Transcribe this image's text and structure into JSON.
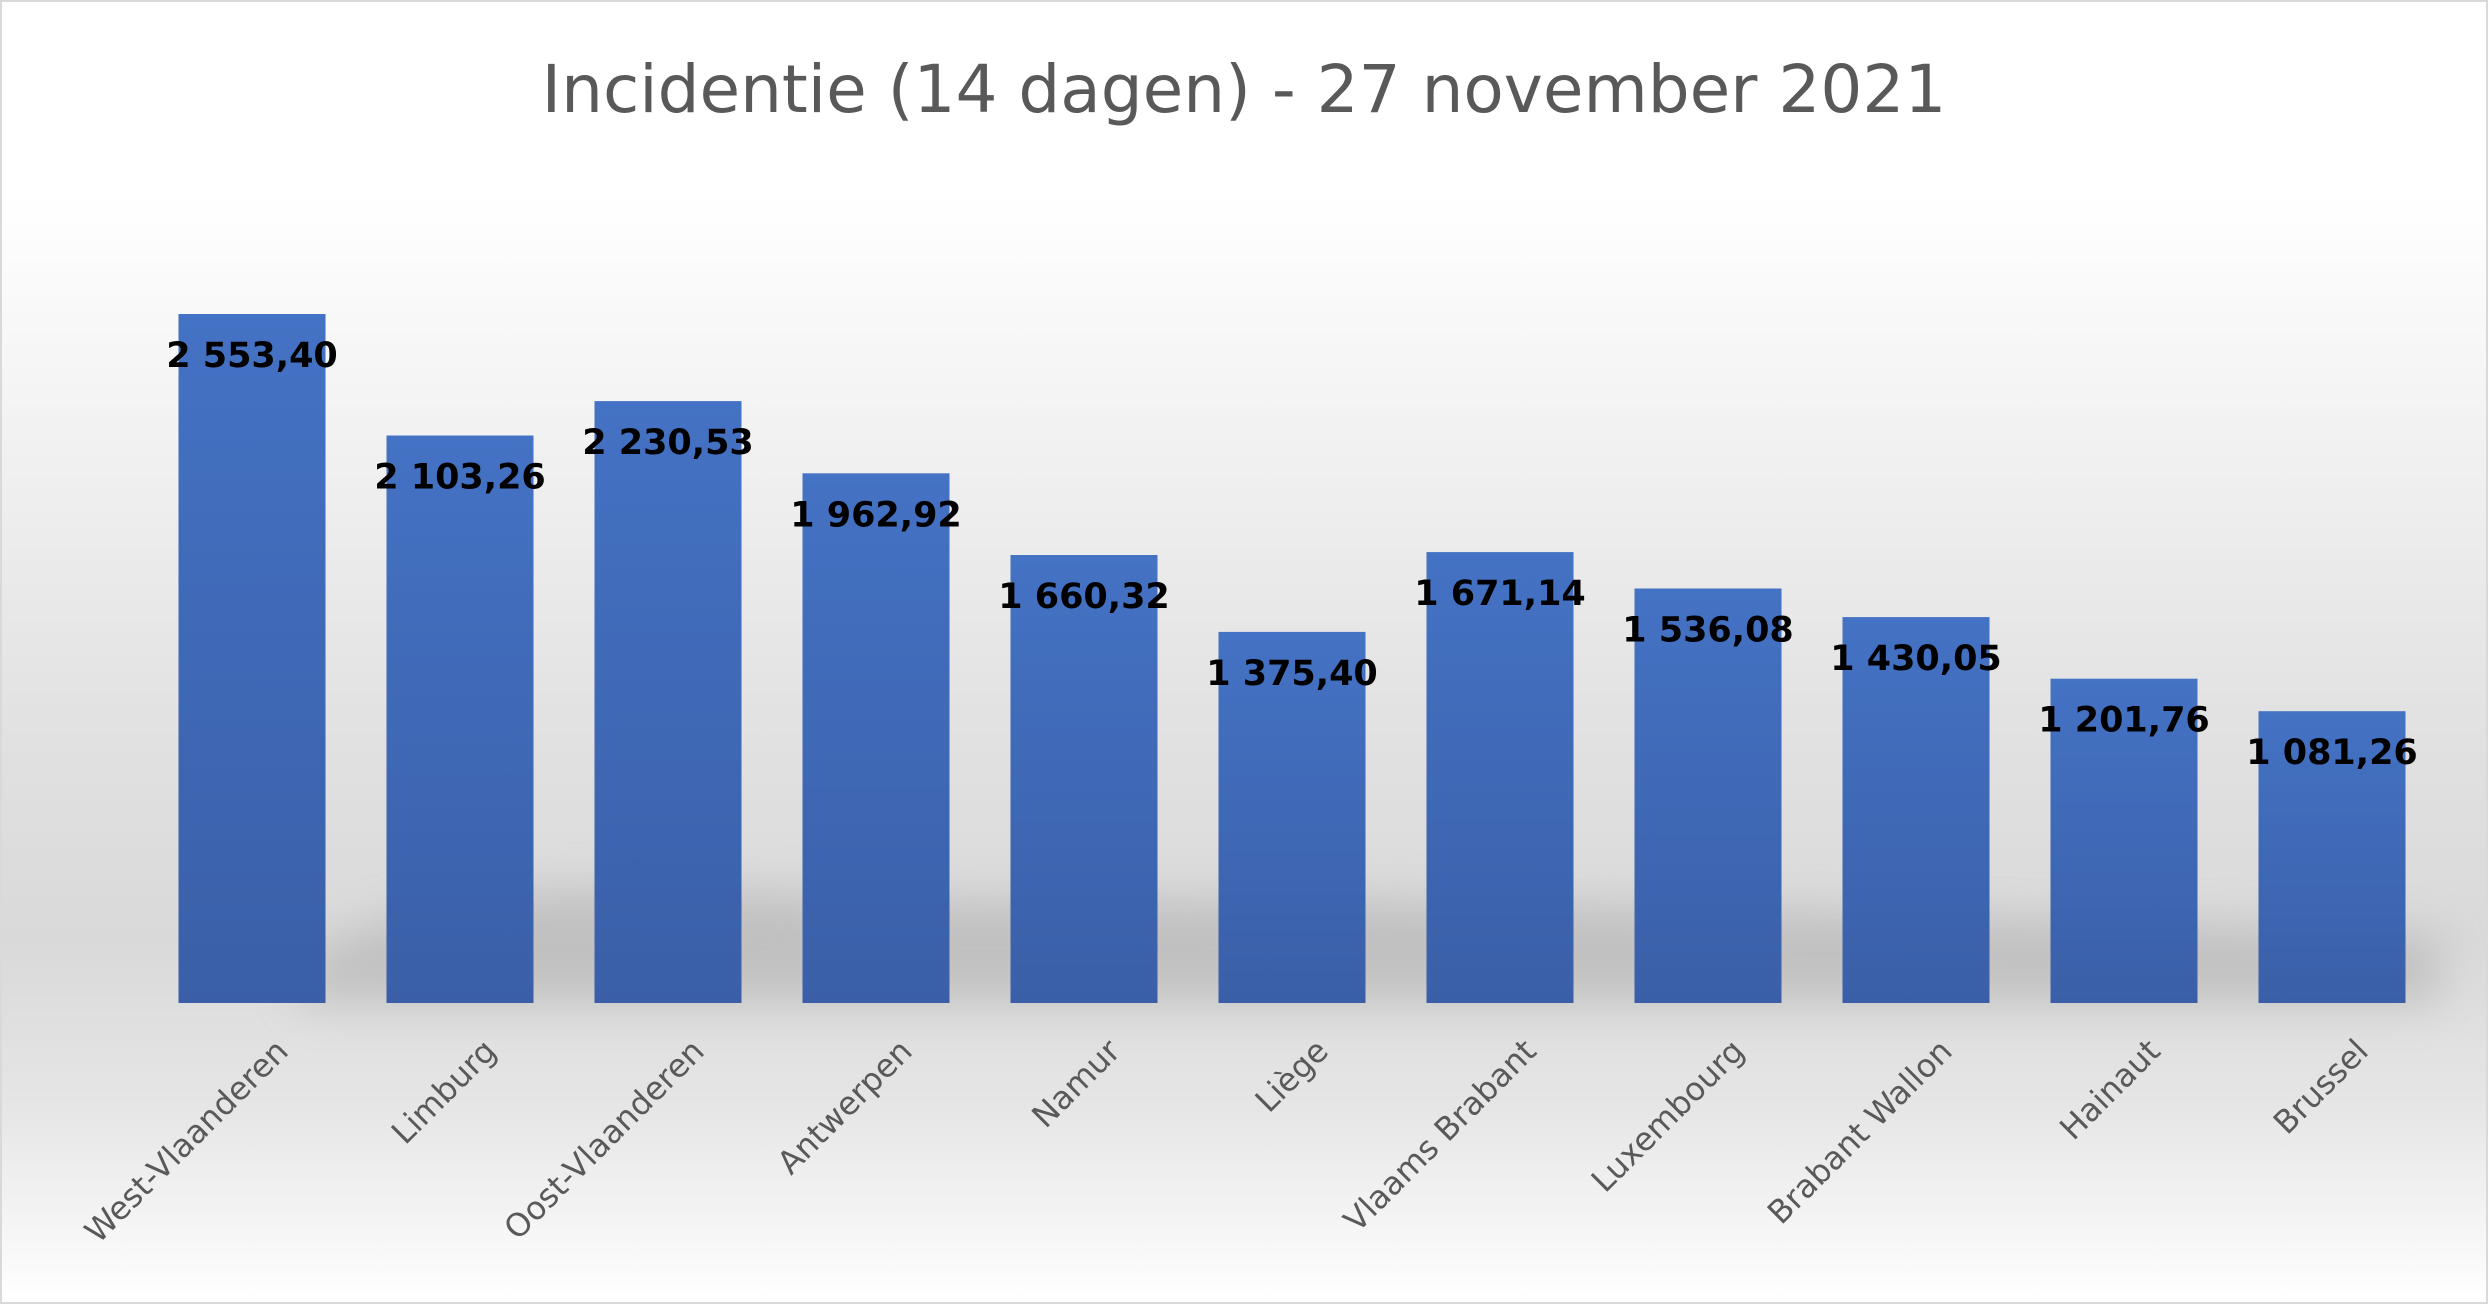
{
  "chart_data": {
    "type": "bar",
    "title": "Incidentie (14 dagen) - 27 november 2021",
    "xlabel": "",
    "ylabel": "",
    "categories": [
      "West-Vlaanderen",
      "Limburg",
      "Oost-Vlaanderen",
      "Antwerpen",
      "Namur",
      "Liège",
      "Vlaams Brabant",
      "Luxembourg",
      "Brabant Wallon",
      "Hainaut",
      "Brussel"
    ],
    "values": [
      2553.4,
      2103.26,
      2230.53,
      1962.92,
      1660.32,
      1375.4,
      1671.14,
      1536.08,
      1430.05,
      1201.76,
      1081.26
    ],
    "value_labels": [
      "2 553,40",
      "2 103,26",
      "2 230,53",
      "1 962,92",
      "1 660,32",
      "1 375,40",
      "1 671,14",
      "1 536,08",
      "1 430,05",
      "1 201,76",
      "1 081,26"
    ],
    "ylim": [
      0,
      2700
    ],
    "grid": false,
    "legend": "none",
    "colors": {
      "bar_top": "#4472c4",
      "bar_bottom": "#3a5fa8",
      "title": "#595959",
      "tick_label": "#595959",
      "data_label": "#000000",
      "background_mid": "#d9d9d9"
    }
  }
}
